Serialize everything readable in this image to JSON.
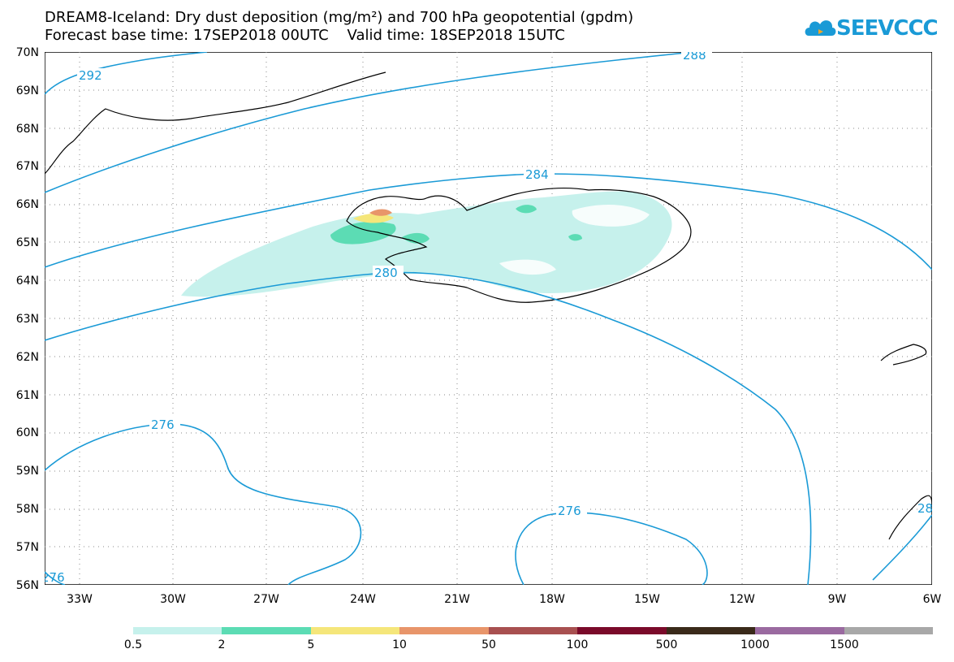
{
  "title": {
    "line1": "DREAM8-Iceland: Dry dust deposition (mg/m²) and 700 hPa geopotential (gpdm)",
    "line2": "Forecast base time: 17SEP2018 00UTC    Valid time: 18SEP2018 15UTC"
  },
  "logo": {
    "text": "SEEVCCC",
    "color": "#1a9ad6"
  },
  "axes": {
    "lat_labels": [
      "70N",
      "69N",
      "68N",
      "67N",
      "66N",
      "65N",
      "64N",
      "63N",
      "62N",
      "61N",
      "60N",
      "59N",
      "58N",
      "57N",
      "56N"
    ],
    "lon_labels": [
      "33W",
      "30W",
      "27W",
      "24W",
      "21W",
      "18W",
      "15W",
      "12W",
      "9W",
      "6W"
    ]
  },
  "contours": {
    "color": "#1a9ad6",
    "labels": [
      "292",
      "288",
      "284",
      "280",
      "276",
      "276",
      "276",
      "28"
    ]
  },
  "legend": {
    "labels": [
      "0.5",
      "2",
      "5",
      "10",
      "50",
      "100",
      "500",
      "1000",
      "1500"
    ],
    "colors": [
      "#c6f1ec",
      "#5cdcb4",
      "#f5e67a",
      "#e8956a",
      "#a85050",
      "#7a0a2a",
      "#3a2a1a",
      "#9a6aa0",
      "#a8a8a8"
    ]
  }
}
